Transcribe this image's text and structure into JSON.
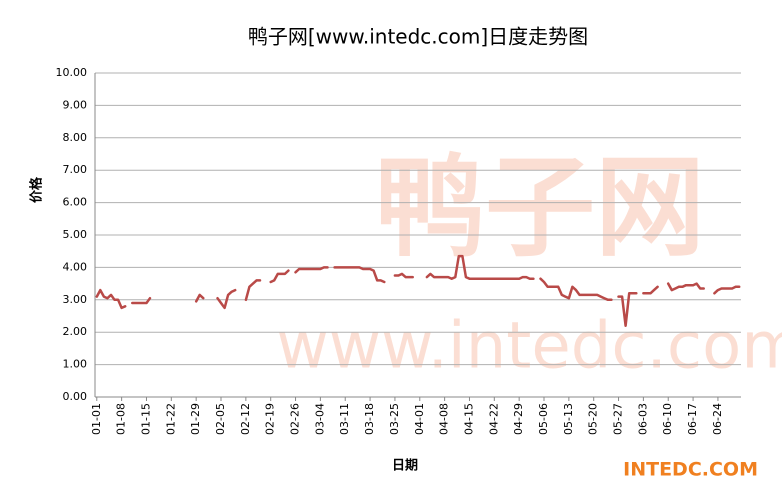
{
  "chart_data": {
    "type": "line",
    "title": "鸭子网[www.intedc.com]日度走势图",
    "x_label": "日期",
    "y_label": "价格",
    "watermarks": [
      "鸭子网",
      "www.intedc.com"
    ],
    "brand": "INTEDC.COM",
    "categories": [
      "01-01",
      null,
      null,
      null,
      null,
      null,
      null,
      "01-08",
      null,
      null,
      null,
      null,
      null,
      null,
      "01-15",
      null,
      null,
      null,
      null,
      null,
      null,
      "01-22",
      null,
      null,
      null,
      null,
      null,
      null,
      "01-29",
      null,
      null,
      null,
      null,
      null,
      null,
      "02-05",
      null,
      null,
      null,
      null,
      null,
      null,
      "02-12",
      null,
      null,
      null,
      null,
      null,
      null,
      "02-19",
      null,
      null,
      null,
      null,
      null,
      null,
      "02-26",
      null,
      null,
      null,
      null,
      null,
      null,
      "03-04",
      null,
      null,
      null,
      null,
      null,
      null,
      "03-11",
      null,
      null,
      null,
      null,
      null,
      null,
      "03-18",
      null,
      null,
      null,
      null,
      null,
      null,
      "03-25",
      null,
      null,
      null,
      null,
      null,
      null,
      "04-01",
      null,
      null,
      null,
      null,
      null,
      null,
      "04-08",
      null,
      null,
      null,
      null,
      null,
      null,
      "04-15",
      null,
      null,
      null,
      null,
      null,
      null,
      "04-22",
      null,
      null,
      null,
      null,
      null,
      null,
      "04-29",
      null,
      null,
      null,
      null,
      null,
      null,
      "05-06",
      null,
      null,
      null,
      null,
      null,
      null,
      "05-13",
      null,
      null,
      null,
      null,
      null,
      null,
      "05-20",
      null,
      null,
      null,
      null,
      null,
      null,
      "05-27",
      null,
      null,
      null,
      null,
      null,
      null,
      "06-03",
      null,
      null,
      null,
      null,
      null,
      null,
      "06-10",
      null,
      null,
      null,
      null,
      null,
      null,
      "06-17",
      null,
      null,
      null,
      null,
      null,
      null,
      "06-24",
      null,
      null,
      null,
      null,
      null,
      null
    ],
    "series": [
      {
        "name": "价格",
        "color": "#b94a48",
        "values": [
          3.1,
          3.3,
          3.1,
          3.05,
          3.15,
          3.0,
          3.0,
          2.75,
          2.8,
          null,
          2.9,
          2.9,
          2.9,
          2.9,
          2.9,
          3.05,
          null,
          null,
          null,
          null,
          null,
          null,
          null,
          null,
          null,
          null,
          null,
          null,
          2.95,
          3.15,
          3.05,
          null,
          null,
          null,
          3.05,
          2.9,
          2.75,
          3.15,
          3.25,
          3.3,
          null,
          null,
          3.0,
          3.4,
          3.5,
          3.6,
          3.6,
          null,
          null,
          3.55,
          3.6,
          3.8,
          3.8,
          3.8,
          3.9,
          null,
          3.85,
          3.95,
          3.95,
          3.95,
          3.95,
          3.95,
          3.95,
          3.95,
          4.0,
          4.0,
          null,
          4.0,
          4.0,
          4.0,
          4.0,
          4.0,
          4.0,
          4.0,
          4.0,
          3.95,
          3.95,
          3.95,
          3.9,
          3.6,
          3.6,
          3.55,
          null,
          null,
          3.75,
          3.75,
          3.8,
          3.7,
          3.7,
          3.7,
          null,
          null,
          null,
          3.7,
          3.8,
          3.7,
          3.7,
          3.7,
          3.7,
          3.7,
          3.65,
          3.7,
          4.35,
          4.35,
          3.7,
          3.65,
          3.65,
          3.65,
          3.65,
          3.65,
          3.65,
          3.65,
          3.65,
          3.65,
          3.65,
          3.65,
          3.65,
          3.65,
          3.65,
          3.65,
          3.7,
          3.7,
          3.65,
          3.65,
          null,
          3.65,
          3.55,
          3.4,
          3.4,
          3.4,
          3.4,
          3.15,
          3.1,
          3.05,
          3.4,
          3.3,
          3.15,
          3.15,
          3.15,
          3.15,
          3.15,
          3.15,
          3.1,
          3.05,
          3.0,
          3.0,
          null,
          3.1,
          3.1,
          2.2,
          3.2,
          3.2,
          3.2,
          null,
          3.2,
          3.2,
          3.2,
          3.3,
          3.4,
          null,
          null,
          3.5,
          3.3,
          3.35,
          3.4,
          3.4,
          3.45,
          3.45,
          3.45,
          3.5,
          3.35,
          3.35,
          null,
          null,
          3.2,
          3.3,
          3.35,
          3.35,
          3.35,
          3.35,
          3.4,
          3.4
        ]
      }
    ],
    "ylim": [
      0,
      10
    ],
    "yticks": [
      {
        "value": 0,
        "label": "0.00"
      },
      {
        "value": 1,
        "label": "1.00"
      },
      {
        "value": 2,
        "label": "2.00"
      },
      {
        "value": 3,
        "label": "3.00"
      },
      {
        "value": 4,
        "label": "4.00"
      },
      {
        "value": 5,
        "label": "5.00"
      },
      {
        "value": 6,
        "label": "6.00"
      },
      {
        "value": 7,
        "label": "7.00"
      },
      {
        "value": 8,
        "label": "8.00"
      },
      {
        "value": 9,
        "label": "9.00"
      },
      {
        "value": 10,
        "label": "10.00"
      }
    ],
    "grid": true
  }
}
